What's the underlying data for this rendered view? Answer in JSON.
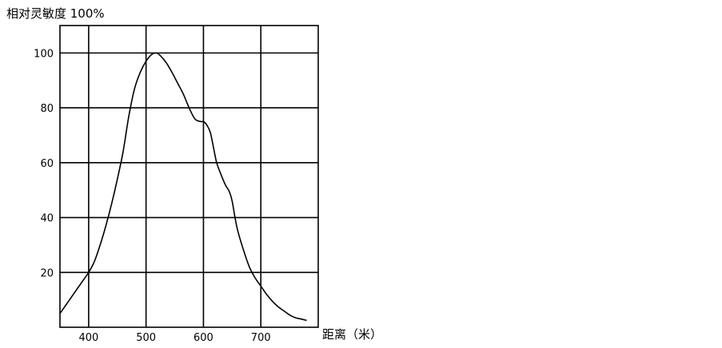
{
  "chart_data": {
    "type": "line",
    "title": "",
    "ylabel": "相对灵敏度 100%",
    "xlabel": "距离（米）",
    "xlim": [
      350,
      800
    ],
    "ylim": [
      0,
      110
    ],
    "x_ticks": [
      400,
      500,
      600,
      700
    ],
    "y_ticks": [
      20,
      40,
      60,
      80,
      100
    ],
    "x_tick_labels": [
      "400",
      "500",
      "600",
      "700"
    ],
    "y_tick_labels": [
      "20",
      "40",
      "60",
      "80",
      "100"
    ],
    "grid": true,
    "series": [
      {
        "color": "#000000",
        "points": [
          [
            350,
            5
          ],
          [
            360,
            8
          ],
          [
            370,
            11
          ],
          [
            380,
            14
          ],
          [
            390,
            17
          ],
          [
            400,
            20
          ],
          [
            410,
            24
          ],
          [
            420,
            30
          ],
          [
            430,
            37
          ],
          [
            440,
            45
          ],
          [
            450,
            54
          ],
          [
            460,
            64
          ],
          [
            470,
            77
          ],
          [
            480,
            87
          ],
          [
            490,
            93
          ],
          [
            500,
            97
          ],
          [
            510,
            99.5
          ],
          [
            518,
            100
          ],
          [
            525,
            99
          ],
          [
            535,
            96.5
          ],
          [
            545,
            93
          ],
          [
            555,
            89
          ],
          [
            565,
            85
          ],
          [
            575,
            80
          ],
          [
            585,
            76
          ],
          [
            595,
            75
          ],
          [
            600,
            75
          ],
          [
            605,
            74
          ],
          [
            612,
            71
          ],
          [
            618,
            65
          ],
          [
            623,
            60
          ],
          [
            630,
            56
          ],
          [
            638,
            52
          ],
          [
            645,
            49.5
          ],
          [
            650,
            46
          ],
          [
            655,
            40
          ],
          [
            660,
            35
          ],
          [
            670,
            28
          ],
          [
            680,
            22
          ],
          [
            690,
            18
          ],
          [
            700,
            15
          ],
          [
            710,
            12
          ],
          [
            720,
            9.5
          ],
          [
            730,
            7.5
          ],
          [
            740,
            6
          ],
          [
            750,
            4.5
          ],
          [
            760,
            3.5
          ],
          [
            770,
            3
          ],
          [
            780,
            2.5
          ]
        ]
      }
    ]
  }
}
